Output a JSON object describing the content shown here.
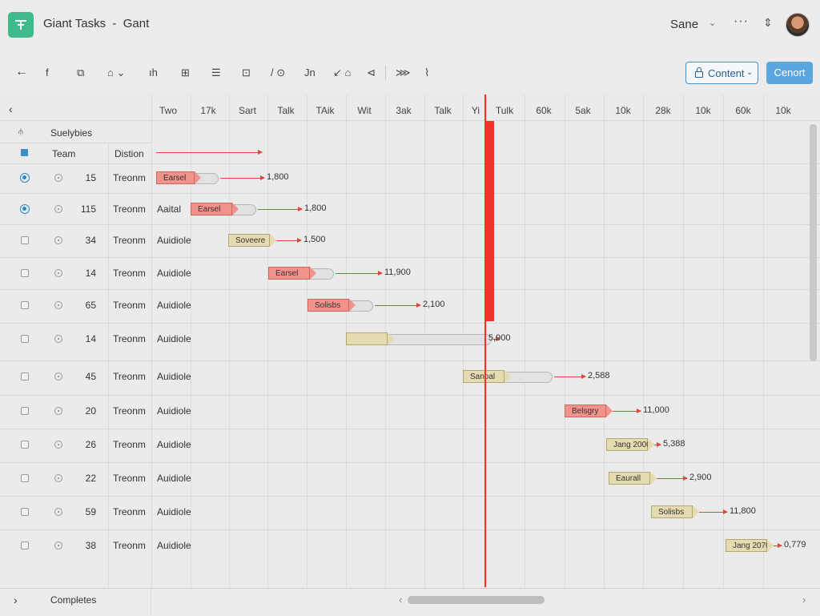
{
  "app": {
    "title": "Giant Tasks  -  Gant",
    "user": "Sane",
    "user_caret": "⌄",
    "more": "···",
    "sort": "⇕"
  },
  "toolbar": {
    "back": "←",
    "tools": [
      "f",
      "⧉",
      "⌂ ⌄",
      "ıh",
      "⊞",
      "☰",
      "⊡",
      "/ ⊙",
      "Jn",
      "↙ ⌂",
      "⊲",
      "⋙",
      "⌇"
    ],
    "content_label": "Content",
    "content_caret": "⌄",
    "cancel_label": "Cenort"
  },
  "grid": {
    "collapse": "‹",
    "group_label": "Suelybies",
    "headers": {
      "team": "Team",
      "distion": "Distion"
    },
    "timeline_headers": [
      "Two",
      "17k",
      "Sart",
      "Talk",
      "TAik",
      "Wit",
      "3ak",
      "Talk",
      "Yi",
      "Tulk",
      "60k",
      "5ak",
      "10k",
      "28k",
      "10k",
      "60k",
      "10k"
    ],
    "rows": [
      {
        "id": "15",
        "team": "Treonm",
        "distion": "",
        "bar_label": "Earsel",
        "value": "1,800",
        "state": "radio",
        "color": "red"
      },
      {
        "id": "115",
        "team": "Treonm",
        "distion": "Aaital",
        "bar_label": "Earsel",
        "value": "1,800",
        "state": "radio",
        "color": "red"
      },
      {
        "id": "34",
        "team": "Treonm",
        "distion": "Auidiole",
        "bar_label": "Soveere",
        "value": "1,500",
        "state": "box",
        "color": "tan"
      },
      {
        "id": "14",
        "team": "Treonm",
        "distion": "Auidiole",
        "bar_label": "Earsel",
        "value": "11,900",
        "state": "box",
        "color": "red"
      },
      {
        "id": "65",
        "team": "Treonm",
        "distion": "Auidiole",
        "bar_label": "Solisbs",
        "value": "2,100",
        "state": "box",
        "color": "red"
      },
      {
        "id": "14",
        "team": "Treonm",
        "distion": "Auidiole",
        "bar_label": "",
        "value": "5,900",
        "state": "box",
        "color": "tan"
      },
      {
        "id": "45",
        "team": "Treonm",
        "distion": "Auidiole",
        "bar_label": "Sanoal",
        "value": "2,588",
        "state": "box",
        "color": "tan"
      },
      {
        "id": "20",
        "team": "Treonm",
        "distion": "Auidiole",
        "bar_label": "Belsgry",
        "value": "11,000",
        "state": "box",
        "color": "red"
      },
      {
        "id": "26",
        "team": "Treonm",
        "distion": "Auidiole",
        "bar_label": "Jang 2000",
        "value": "5,388",
        "state": "box",
        "color": "tan"
      },
      {
        "id": "22",
        "team": "Treonm",
        "distion": "Auidiole",
        "bar_label": "Eaurall",
        "value": "2,900",
        "state": "box",
        "color": "tan"
      },
      {
        "id": "59",
        "team": "Treonm",
        "distion": "Auidiole",
        "bar_label": "Solisbs",
        "value": "11,800",
        "state": "box",
        "color": "tan"
      },
      {
        "id": "38",
        "team": "Treonm",
        "distion": "Auidiole",
        "bar_label": "Jang 2070",
        "value": "0,779",
        "state": "box",
        "color": "tan"
      }
    ]
  },
  "footer": {
    "expand": "›",
    "label": "Completes",
    "scroll_left": "‹",
    "scroll_right": "›"
  },
  "colors": {
    "accent": "#5aa6e0",
    "today": "#ee3424",
    "bar_red": "#f0938a",
    "bar_tan": "#e4dcb0"
  }
}
